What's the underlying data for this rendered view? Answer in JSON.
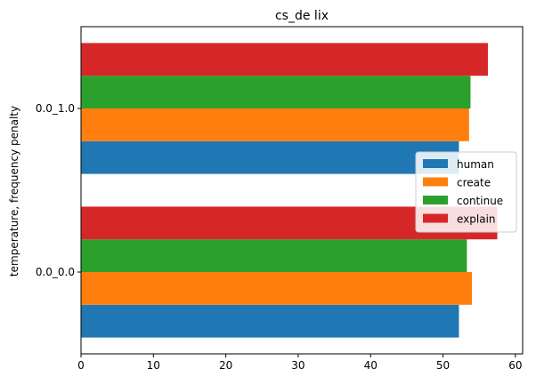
{
  "chart_data": {
    "type": "bar",
    "orientation": "horizontal",
    "title": "cs_de lix",
    "xlabel": "",
    "ylabel": "temperature, frequency penalty",
    "categories": [
      "0.0_0.0",
      "0.0_1.0"
    ],
    "xlim": [
      0,
      61
    ],
    "xticks": [
      0,
      10,
      20,
      30,
      40,
      50,
      60
    ],
    "grid": false,
    "legend_position": "center-right",
    "series": [
      {
        "name": "human",
        "color": "#1f77b4",
        "values": [
          52.2,
          52.2
        ]
      },
      {
        "name": "create",
        "color": "#ff7f0e",
        "values": [
          54.0,
          53.6
        ]
      },
      {
        "name": "continue",
        "color": "#2ca02c",
        "values": [
          53.3,
          53.8
        ]
      },
      {
        "name": "explain",
        "color": "#d62728",
        "values": [
          57.5,
          56.2
        ]
      }
    ]
  }
}
